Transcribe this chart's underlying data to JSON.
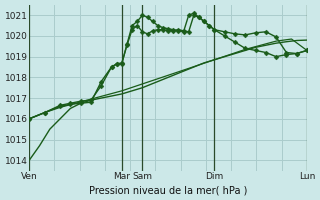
{
  "bg_color": "#cce8e8",
  "grid_color": "#aacccc",
  "line_color": "#1a5c1a",
  "ylim": [
    1013.5,
    1021.5
  ],
  "yticks": [
    1014,
    1015,
    1016,
    1017,
    1018,
    1019,
    1020,
    1021
  ],
  "xlabel": "Pression niveau de la mer( hPa )",
  "xtick_labels": [
    "Ven",
    "Mar",
    "Sam",
    "Dim",
    "Lun"
  ],
  "xtick_positions": [
    0,
    18,
    22,
    36,
    54
  ],
  "vline_positions": [
    0,
    18,
    22,
    36,
    54
  ],
  "total_points": 55,
  "series": {
    "s1_no_marker": [
      [
        0,
        1014.0
      ],
      [
        2,
        1014.7
      ],
      [
        4,
        1015.5
      ],
      [
        6,
        1016.0
      ],
      [
        8,
        1016.5
      ],
      [
        10,
        1016.75
      ],
      [
        12,
        1016.9
      ],
      [
        14,
        1017.0
      ],
      [
        16,
        1017.1
      ],
      [
        18,
        1017.2
      ],
      [
        20,
        1017.35
      ],
      [
        22,
        1017.5
      ],
      [
        24,
        1017.7
      ],
      [
        26,
        1017.9
      ],
      [
        28,
        1018.1
      ],
      [
        30,
        1018.3
      ],
      [
        32,
        1018.5
      ],
      [
        34,
        1018.7
      ],
      [
        36,
        1018.85
      ],
      [
        38,
        1019.0
      ],
      [
        40,
        1019.15
      ],
      [
        42,
        1019.3
      ],
      [
        44,
        1019.45
      ],
      [
        46,
        1019.55
      ],
      [
        48,
        1019.65
      ],
      [
        50,
        1019.72
      ],
      [
        52,
        1019.78
      ],
      [
        54,
        1019.8
      ]
    ],
    "s2_with_marker": [
      [
        0,
        1016.0
      ],
      [
        3,
        1016.3
      ],
      [
        6,
        1016.65
      ],
      [
        8,
        1016.75
      ],
      [
        10,
        1016.85
      ],
      [
        12,
        1016.9
      ],
      [
        14,
        1017.6
      ],
      [
        16,
        1018.5
      ],
      [
        17,
        1018.65
      ],
      [
        18,
        1018.7
      ],
      [
        19,
        1019.55
      ],
      [
        20,
        1020.3
      ],
      [
        21,
        1020.5
      ],
      [
        22,
        1020.2
      ],
      [
        23,
        1020.1
      ],
      [
        24,
        1020.25
      ],
      [
        25,
        1020.3
      ],
      [
        26,
        1020.3
      ],
      [
        27,
        1020.25
      ],
      [
        28,
        1020.25
      ],
      [
        29,
        1020.3
      ],
      [
        30,
        1020.25
      ],
      [
        31,
        1020.2
      ],
      [
        32,
        1021.0
      ],
      [
        33,
        1020.9
      ],
      [
        34,
        1020.7
      ],
      [
        35,
        1020.5
      ],
      [
        36,
        1020.3
      ],
      [
        38,
        1020.2
      ],
      [
        40,
        1020.1
      ],
      [
        42,
        1020.05
      ],
      [
        44,
        1020.15
      ],
      [
        46,
        1020.2
      ],
      [
        48,
        1019.95
      ],
      [
        50,
        1019.2
      ],
      [
        52,
        1019.15
      ],
      [
        54,
        1019.3
      ]
    ],
    "s3_with_marker": [
      [
        0,
        1016.0
      ],
      [
        3,
        1016.3
      ],
      [
        6,
        1016.6
      ],
      [
        8,
        1016.7
      ],
      [
        10,
        1016.75
      ],
      [
        12,
        1016.8
      ],
      [
        14,
        1017.8
      ],
      [
        16,
        1018.5
      ],
      [
        17,
        1018.65
      ],
      [
        18,
        1018.65
      ],
      [
        19,
        1019.6
      ],
      [
        20,
        1020.5
      ],
      [
        21,
        1020.7
      ],
      [
        22,
        1021.0
      ],
      [
        23,
        1020.9
      ],
      [
        24,
        1020.7
      ],
      [
        25,
        1020.5
      ],
      [
        26,
        1020.4
      ],
      [
        27,
        1020.35
      ],
      [
        28,
        1020.3
      ],
      [
        29,
        1020.25
      ],
      [
        30,
        1020.2
      ],
      [
        31,
        1021.0
      ],
      [
        32,
        1021.1
      ],
      [
        33,
        1020.9
      ],
      [
        34,
        1020.7
      ],
      [
        35,
        1020.5
      ],
      [
        36,
        1020.3
      ],
      [
        38,
        1020.0
      ],
      [
        40,
        1019.7
      ],
      [
        42,
        1019.4
      ],
      [
        44,
        1019.3
      ],
      [
        46,
        1019.2
      ],
      [
        48,
        1019.0
      ],
      [
        50,
        1019.1
      ],
      [
        52,
        1019.15
      ],
      [
        54,
        1019.3
      ]
    ],
    "s4_smooth": [
      [
        0,
        1016.0
      ],
      [
        3,
        1016.3
      ],
      [
        6,
        1016.55
      ],
      [
        9,
        1016.75
      ],
      [
        12,
        1016.95
      ],
      [
        15,
        1017.15
      ],
      [
        18,
        1017.35
      ],
      [
        21,
        1017.6
      ],
      [
        24,
        1017.85
      ],
      [
        27,
        1018.1
      ],
      [
        30,
        1018.35
      ],
      [
        33,
        1018.6
      ],
      [
        36,
        1018.85
      ],
      [
        39,
        1019.1
      ],
      [
        42,
        1019.35
      ],
      [
        45,
        1019.55
      ],
      [
        48,
        1019.75
      ],
      [
        51,
        1019.85
      ],
      [
        54,
        1019.3
      ]
    ]
  }
}
